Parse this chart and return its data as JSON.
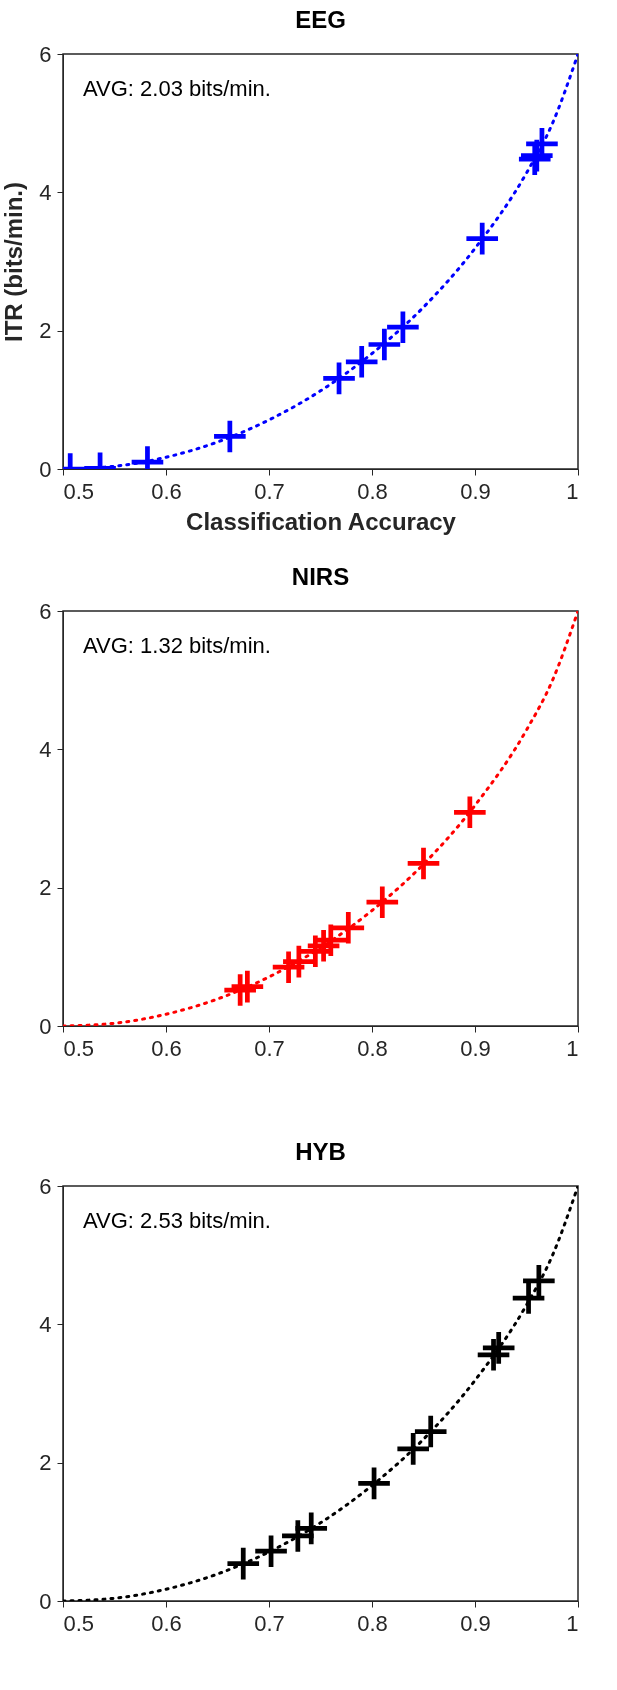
{
  "chart_data": [
    {
      "type": "scatter",
      "title": "EEG",
      "xlabel": "Classification Accuracy",
      "ylabel": "ITR (bits/min.)",
      "xlim": [
        0.5,
        1
      ],
      "ylim": [
        0,
        6
      ],
      "xticks": [
        0.5,
        0.6,
        0.7,
        0.8,
        0.9,
        1
      ],
      "yticks": [
        0,
        2,
        4,
        6
      ],
      "marker": "cross",
      "grid": false,
      "annotations": [
        "AVG: 2.03 bits/min."
      ],
      "series": [
        {
          "type": "line",
          "color": "#0000ff",
          "line_style": "dotted",
          "marker": "none",
          "x": [
            0.5,
            0.55,
            0.6,
            0.65,
            0.7,
            0.75,
            0.8,
            0.85,
            0.9,
            0.95,
            0.975,
            1
          ],
          "values": [
            0,
            0.04,
            0.17,
            0.39,
            0.71,
            1.13,
            1.67,
            2.34,
            3.19,
            4.28,
            4.99,
            6
          ]
        },
        {
          "type": "scatter",
          "color": "#0000ff",
          "x": [
            0.507,
            0.536,
            0.582,
            0.662,
            0.768,
            0.79,
            0.812,
            0.83,
            0.907,
            0.958,
            0.96,
            0.965
          ],
          "values": [
            0,
            0.01,
            0.1,
            0.47,
            1.31,
            1.55,
            1.8,
            2.05,
            3.33,
            4.48,
            4.53,
            4.7
          ]
        }
      ]
    },
    {
      "type": "scatter",
      "title": "NIRS",
      "xlim": [
        0.5,
        1
      ],
      "ylim": [
        0,
        6
      ],
      "xticks": [
        0.5,
        0.6,
        0.7,
        0.8,
        0.9,
        1
      ],
      "yticks": [
        0,
        2,
        4,
        6
      ],
      "marker": "cross",
      "grid": false,
      "annotations": [
        "AVG: 1.32 bits/min."
      ],
      "series": [
        {
          "type": "line",
          "color": "#ff0000",
          "line_style": "dotted",
          "marker": "none",
          "x": [
            0.5,
            0.55,
            0.6,
            0.65,
            0.7,
            0.75,
            0.8,
            0.85,
            0.9,
            0.95,
            0.975,
            1
          ],
          "values": [
            0,
            0.04,
            0.17,
            0.39,
            0.71,
            1.13,
            1.67,
            2.34,
            3.19,
            4.28,
            4.99,
            6
          ]
        },
        {
          "type": "scatter",
          "color": "#ff0000",
          "x": [
            0.672,
            0.679,
            0.719,
            0.729,
            0.745,
            0.753,
            0.76,
            0.777,
            0.81,
            0.85,
            0.895
          ],
          "values": [
            0.52,
            0.57,
            0.85,
            0.93,
            1.08,
            1.16,
            1.24,
            1.42,
            1.79,
            2.35,
            3.09
          ]
        }
      ]
    },
    {
      "type": "scatter",
      "title": "HYB",
      "xlim": [
        0.5,
        1
      ],
      "ylim": [
        0,
        6
      ],
      "xticks": [
        0.5,
        0.6,
        0.7,
        0.8,
        0.9,
        1
      ],
      "yticks": [
        0,
        2,
        4,
        6
      ],
      "marker": "cross",
      "grid": false,
      "annotations": [
        "AVG: 2.53 bits/min."
      ],
      "series": [
        {
          "type": "line",
          "color": "#000000",
          "line_style": "dotted",
          "marker": "none",
          "x": [
            0.5,
            0.55,
            0.6,
            0.65,
            0.7,
            0.75,
            0.8,
            0.85,
            0.9,
            0.95,
            0.975,
            1
          ],
          "values": [
            0,
            0.04,
            0.17,
            0.39,
            0.71,
            1.13,
            1.67,
            2.34,
            3.19,
            4.28,
            4.99,
            6
          ]
        },
        {
          "type": "scatter",
          "color": "#000000",
          "x": [
            0.675,
            0.702,
            0.728,
            0.741,
            0.802,
            0.84,
            0.857,
            0.918,
            0.923,
            0.952,
            0.962
          ],
          "values": [
            0.54,
            0.72,
            0.94,
            1.05,
            1.7,
            2.2,
            2.45,
            3.56,
            3.66,
            4.38,
            4.63
          ]
        }
      ]
    }
  ]
}
